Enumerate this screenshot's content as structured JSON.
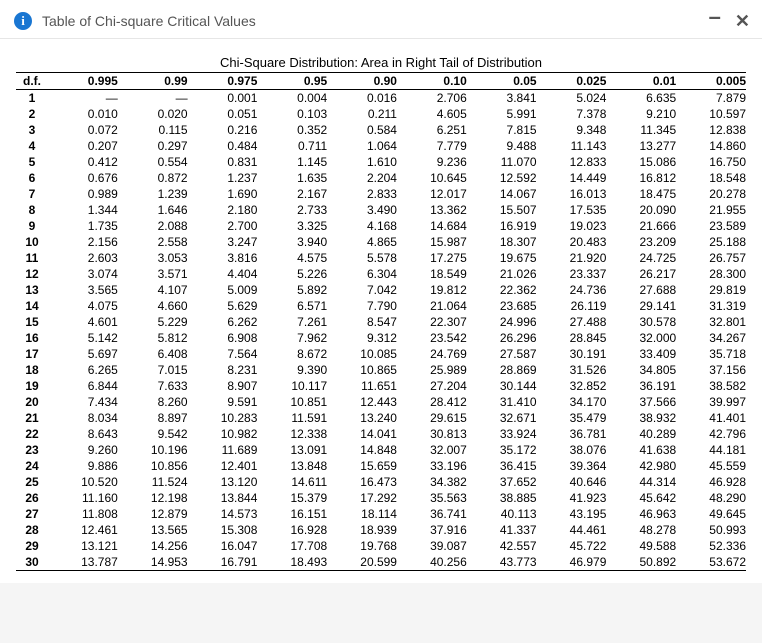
{
  "window": {
    "title": "Table of Chi-square Critical Values",
    "info_icon_glyph": "i",
    "minimize_glyph": "–",
    "close_glyph": "✕"
  },
  "table": {
    "caption": "Chi-Square Distribution: Area in Right Tail of Distribution",
    "df_header": "d.f.",
    "alpha_headers": [
      "0.995",
      "0.99",
      "0.975",
      "0.95",
      "0.90",
      "0.10",
      "0.05",
      "0.025",
      "0.01",
      "0.005"
    ],
    "rows": [
      {
        "df": "1",
        "v": [
          "—",
          "—",
          "0.001",
          "0.004",
          "0.016",
          "2.706",
          "3.841",
          "5.024",
          "6.635",
          "7.879"
        ]
      },
      {
        "df": "2",
        "v": [
          "0.010",
          "0.020",
          "0.051",
          "0.103",
          "0.211",
          "4.605",
          "5.991",
          "7.378",
          "9.210",
          "10.597"
        ]
      },
      {
        "df": "3",
        "v": [
          "0.072",
          "0.115",
          "0.216",
          "0.352",
          "0.584",
          "6.251",
          "7.815",
          "9.348",
          "11.345",
          "12.838"
        ]
      },
      {
        "df": "4",
        "v": [
          "0.207",
          "0.297",
          "0.484",
          "0.711",
          "1.064",
          "7.779",
          "9.488",
          "11.143",
          "13.277",
          "14.860"
        ]
      },
      {
        "df": "5",
        "v": [
          "0.412",
          "0.554",
          "0.831",
          "1.145",
          "1.610",
          "9.236",
          "11.070",
          "12.833",
          "15.086",
          "16.750"
        ]
      },
      {
        "df": "6",
        "v": [
          "0.676",
          "0.872",
          "1.237",
          "1.635",
          "2.204",
          "10.645",
          "12.592",
          "14.449",
          "16.812",
          "18.548"
        ]
      },
      {
        "df": "7",
        "v": [
          "0.989",
          "1.239",
          "1.690",
          "2.167",
          "2.833",
          "12.017",
          "14.067",
          "16.013",
          "18.475",
          "20.278"
        ]
      },
      {
        "df": "8",
        "v": [
          "1.344",
          "1.646",
          "2.180",
          "2.733",
          "3.490",
          "13.362",
          "15.507",
          "17.535",
          "20.090",
          "21.955"
        ]
      },
      {
        "df": "9",
        "v": [
          "1.735",
          "2.088",
          "2.700",
          "3.325",
          "4.168",
          "14.684",
          "16.919",
          "19.023",
          "21.666",
          "23.589"
        ]
      },
      {
        "df": "10",
        "v": [
          "2.156",
          "2.558",
          "3.247",
          "3.940",
          "4.865",
          "15.987",
          "18.307",
          "20.483",
          "23.209",
          "25.188"
        ]
      },
      {
        "df": "11",
        "v": [
          "2.603",
          "3.053",
          "3.816",
          "4.575",
          "5.578",
          "17.275",
          "19.675",
          "21.920",
          "24.725",
          "26.757"
        ]
      },
      {
        "df": "12",
        "v": [
          "3.074",
          "3.571",
          "4.404",
          "5.226",
          "6.304",
          "18.549",
          "21.026",
          "23.337",
          "26.217",
          "28.300"
        ]
      },
      {
        "df": "13",
        "v": [
          "3.565",
          "4.107",
          "5.009",
          "5.892",
          "7.042",
          "19.812",
          "22.362",
          "24.736",
          "27.688",
          "29.819"
        ]
      },
      {
        "df": "14",
        "v": [
          "4.075",
          "4.660",
          "5.629",
          "6.571",
          "7.790",
          "21.064",
          "23.685",
          "26.119",
          "29.141",
          "31.319"
        ]
      },
      {
        "df": "15",
        "v": [
          "4.601",
          "5.229",
          "6.262",
          "7.261",
          "8.547",
          "22.307",
          "24.996",
          "27.488",
          "30.578",
          "32.801"
        ]
      },
      {
        "df": "16",
        "v": [
          "5.142",
          "5.812",
          "6.908",
          "7.962",
          "9.312",
          "23.542",
          "26.296",
          "28.845",
          "32.000",
          "34.267"
        ]
      },
      {
        "df": "17",
        "v": [
          "5.697",
          "6.408",
          "7.564",
          "8.672",
          "10.085",
          "24.769",
          "27.587",
          "30.191",
          "33.409",
          "35.718"
        ]
      },
      {
        "df": "18",
        "v": [
          "6.265",
          "7.015",
          "8.231",
          "9.390",
          "10.865",
          "25.989",
          "28.869",
          "31.526",
          "34.805",
          "37.156"
        ]
      },
      {
        "df": "19",
        "v": [
          "6.844",
          "7.633",
          "8.907",
          "10.117",
          "11.651",
          "27.204",
          "30.144",
          "32.852",
          "36.191",
          "38.582"
        ]
      },
      {
        "df": "20",
        "v": [
          "7.434",
          "8.260",
          "9.591",
          "10.851",
          "12.443",
          "28.412",
          "31.410",
          "34.170",
          "37.566",
          "39.997"
        ]
      },
      {
        "df": "21",
        "v": [
          "8.034",
          "8.897",
          "10.283",
          "11.591",
          "13.240",
          "29.615",
          "32.671",
          "35.479",
          "38.932",
          "41.401"
        ]
      },
      {
        "df": "22",
        "v": [
          "8.643",
          "9.542",
          "10.982",
          "12.338",
          "14.041",
          "30.813",
          "33.924",
          "36.781",
          "40.289",
          "42.796"
        ]
      },
      {
        "df": "23",
        "v": [
          "9.260",
          "10.196",
          "11.689",
          "13.091",
          "14.848",
          "32.007",
          "35.172",
          "38.076",
          "41.638",
          "44.181"
        ]
      },
      {
        "df": "24",
        "v": [
          "9.886",
          "10.856",
          "12.401",
          "13.848",
          "15.659",
          "33.196",
          "36.415",
          "39.364",
          "42.980",
          "45.559"
        ]
      },
      {
        "df": "25",
        "v": [
          "10.520",
          "11.524",
          "13.120",
          "14.611",
          "16.473",
          "34.382",
          "37.652",
          "40.646",
          "44.314",
          "46.928"
        ]
      },
      {
        "df": "26",
        "v": [
          "11.160",
          "12.198",
          "13.844",
          "15.379",
          "17.292",
          "35.563",
          "38.885",
          "41.923",
          "45.642",
          "48.290"
        ]
      },
      {
        "df": "27",
        "v": [
          "11.808",
          "12.879",
          "14.573",
          "16.151",
          "18.114",
          "36.741",
          "40.113",
          "43.195",
          "46.963",
          "49.645"
        ]
      },
      {
        "df": "28",
        "v": [
          "12.461",
          "13.565",
          "15.308",
          "16.928",
          "18.939",
          "37.916",
          "41.337",
          "44.461",
          "48.278",
          "50.993"
        ]
      },
      {
        "df": "29",
        "v": [
          "13.121",
          "14.256",
          "16.047",
          "17.708",
          "19.768",
          "39.087",
          "42.557",
          "45.722",
          "49.588",
          "52.336"
        ]
      },
      {
        "df": "30",
        "v": [
          "13.787",
          "14.953",
          "16.791",
          "18.493",
          "20.599",
          "40.256",
          "43.773",
          "46.979",
          "50.892",
          "53.672"
        ]
      }
    ]
  }
}
